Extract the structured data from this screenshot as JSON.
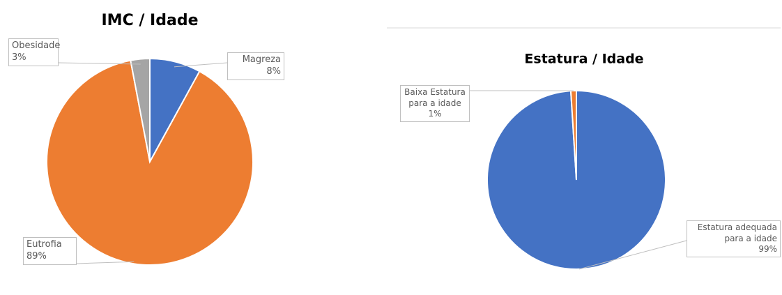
{
  "chart_data": [
    {
      "type": "pie",
      "title": "IMC / Idade",
      "categories": [
        "Magreza",
        "Eutrofia",
        "Obesidade"
      ],
      "values": [
        8,
        89,
        3
      ],
      "value_labels": [
        "8%",
        "89%",
        "3%"
      ],
      "colors": [
        "#4472c4",
        "#ed7d31",
        "#a5a5a5"
      ]
    },
    {
      "type": "pie",
      "title": "Estatura / Idade",
      "categories": [
        "Estatura adequada para a idade",
        "Baixa Estatura para a idade"
      ],
      "values": [
        99,
        1
      ],
      "value_labels": [
        "99%",
        "1%"
      ],
      "colors": [
        "#4472c4",
        "#ed7d31"
      ]
    }
  ]
}
